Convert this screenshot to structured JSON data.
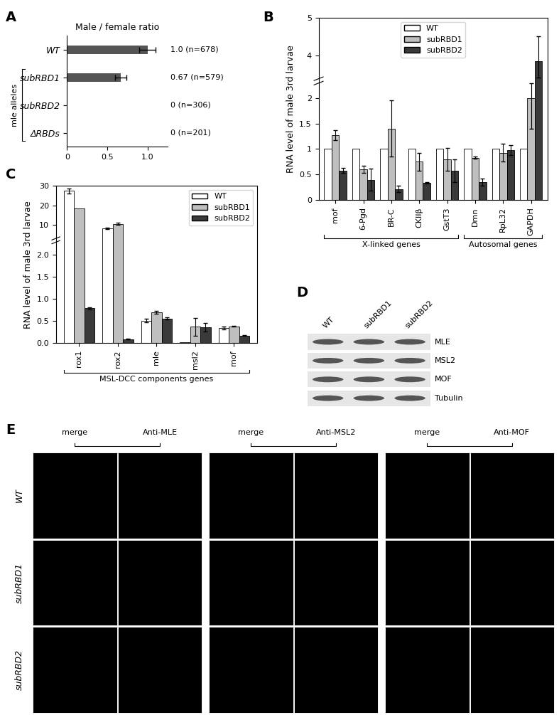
{
  "chart_data": [
    {
      "panel": "A",
      "type": "bar",
      "orientation": "horizontal",
      "title": "Male / female ratio",
      "categories": [
        "WT",
        "subRBD1",
        "subRBD2",
        "ΔRBDs"
      ],
      "values": [
        1.0,
        0.67,
        0,
        0
      ],
      "errors": [
        0.1,
        0.07,
        null,
        null
      ],
      "value_labels": [
        "1.0 (n=678)",
        "0.67 (n=579)",
        "0 (n=306)",
        "0 (n=201)"
      ],
      "data_labels": true,
      "color": "#555555",
      "xlim": [
        0,
        1.25
      ],
      "xticks": [
        0,
        0.5,
        1.0
      ],
      "groups": [
        {
          "label": "mle alleles",
          "members": [
            "subRBD1",
            "subRBD2",
            "ΔRBDs"
          ]
        }
      ]
    },
    {
      "panel": "B",
      "type": "bar",
      "ylabel": "RNA level of male 3rd larvae",
      "categories": [
        "mof",
        "6-Pgd",
        "BR-C",
        "CKIIβ",
        "GstT3",
        "Dmn",
        "RpL32",
        "GAPDH"
      ],
      "series": [
        {
          "name": "WT",
          "color": "#ffffff",
          "values": [
            1,
            1,
            1,
            1,
            1,
            1,
            1,
            1
          ]
        },
        {
          "name": "subRBD1",
          "color": "#bfbfbf",
          "values": [
            1.27,
            0.6,
            1.4,
            0.75,
            0.8,
            0.83,
            0.93,
            2.0
          ],
          "errors": [
            0.1,
            0.07,
            0.55,
            0.18,
            0.22,
            0.02,
            0.18,
            0.6
          ]
        },
        {
          "name": "subRBD2",
          "color": "#3a3a3a",
          "values": [
            0.58,
            0.4,
            0.22,
            0.34,
            0.58,
            0.35,
            0.98,
            3.85
          ],
          "errors": [
            0.05,
            0.22,
            0.06,
            0.02,
            0.22,
            0.07,
            0.1,
            0.65
          ]
        }
      ],
      "ylim": [
        0,
        5
      ],
      "yticks": [
        0,
        0.5,
        1,
        1.5,
        2,
        4,
        5
      ],
      "ybreak": [
        2.2,
        3.5
      ],
      "legend": "upper center",
      "groups": [
        {
          "label": "X-linked genes",
          "members": [
            "mof",
            "6-Pgd",
            "BR-C",
            "CKIIβ",
            "GstT3"
          ]
        },
        {
          "label": "Autosomal genes",
          "members": [
            "Dmn",
            "RpL32",
            "GAPDH"
          ]
        }
      ]
    },
    {
      "panel": "C",
      "type": "bar",
      "ylabel": "RNA level of male 3rd larvae",
      "categories": [
        "rox1",
        "rox2",
        "mle",
        "msl2",
        "mof"
      ],
      "series": [
        {
          "name": "WT",
          "color": "#ffffff",
          "values": [
            27.5,
            8.0,
            0.51,
            0.02,
            0.35
          ],
          "errors": [
            1.3,
            0.4,
            0.04,
            null,
            0.03
          ]
        },
        {
          "name": "subRBD1",
          "color": "#bfbfbf",
          "values": [
            18.3,
            10.5,
            0.7,
            0.37,
            0.38
          ],
          "errors": [
            null,
            0.5,
            0.03,
            0.2,
            0.01
          ]
        },
        {
          "name": "subRBD2",
          "color": "#3a3a3a",
          "values": [
            0.79,
            0.09,
            0.56,
            0.36,
            0.17
          ],
          "errors": [
            0.02,
            0.01,
            0.02,
            0.1,
            0.01
          ]
        }
      ],
      "ylim": [
        0,
        30
      ],
      "yticks": [
        0.0,
        0.5,
        1.0,
        1.5,
        2.0,
        10,
        20,
        30
      ],
      "ybreak": [
        2.2,
        5
      ],
      "legend": "upper right",
      "groups": [
        {
          "label": "MSL-DCC components genes",
          "members": [
            "rox1",
            "rox2",
            "mle",
            "msl2",
            "mof"
          ]
        }
      ]
    }
  ],
  "blot": {
    "panel": "D",
    "lanes": [
      "WT",
      "subRBD1",
      "subRBD2"
    ],
    "rows": [
      "MLE",
      "MSL2",
      "MOF",
      "Tubulin"
    ]
  },
  "images": {
    "panel": "E",
    "rows": [
      "WT",
      "subRBD1",
      "subRBD2"
    ],
    "columns": [
      [
        "merge",
        "Anti-MLE"
      ],
      [
        "merge",
        "Anti-MSL2"
      ],
      [
        "merge",
        "Anti-MOF"
      ]
    ]
  }
}
